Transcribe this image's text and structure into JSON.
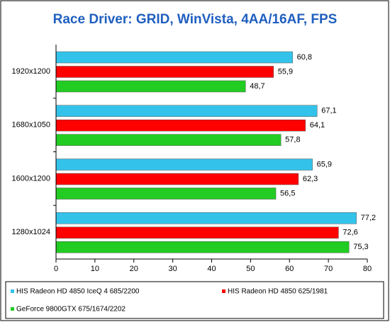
{
  "chart_data": {
    "type": "bar",
    "orientation": "horizontal",
    "title": "Race Driver: GRID, WinVista, 4AA/16AF, FPS",
    "categories": [
      "1920x1200",
      "1680x1050",
      "1600x1200",
      "1280x1024"
    ],
    "series": [
      {
        "name": "HIS Radeon HD 4850 IceQ 4 685/2200",
        "color": "#33c3ea",
        "values": [
          60.8,
          67.1,
          65.9,
          77.2
        ],
        "value_labels": [
          "60,8",
          "67,1",
          "65,9",
          "77,2"
        ]
      },
      {
        "name": "HIS Radeon HD 4850 625/1981",
        "color": "#ff0000",
        "values": [
          55.9,
          64.1,
          62.3,
          72.6
        ],
        "value_labels": [
          "55,9",
          "64,1",
          "62,3",
          "72,6"
        ]
      },
      {
        "name": "GeForce 9800GTX 675/1674/2202",
        "color": "#22cc22",
        "values": [
          48.7,
          57.8,
          56.5,
          75.3
        ],
        "value_labels": [
          "48,7",
          "57,8",
          "56,5",
          "75,3"
        ]
      }
    ],
    "xlim": [
      0,
      80
    ],
    "xticks": [
      0,
      10,
      20,
      30,
      40,
      50,
      60,
      70,
      80
    ],
    "grid": false
  }
}
